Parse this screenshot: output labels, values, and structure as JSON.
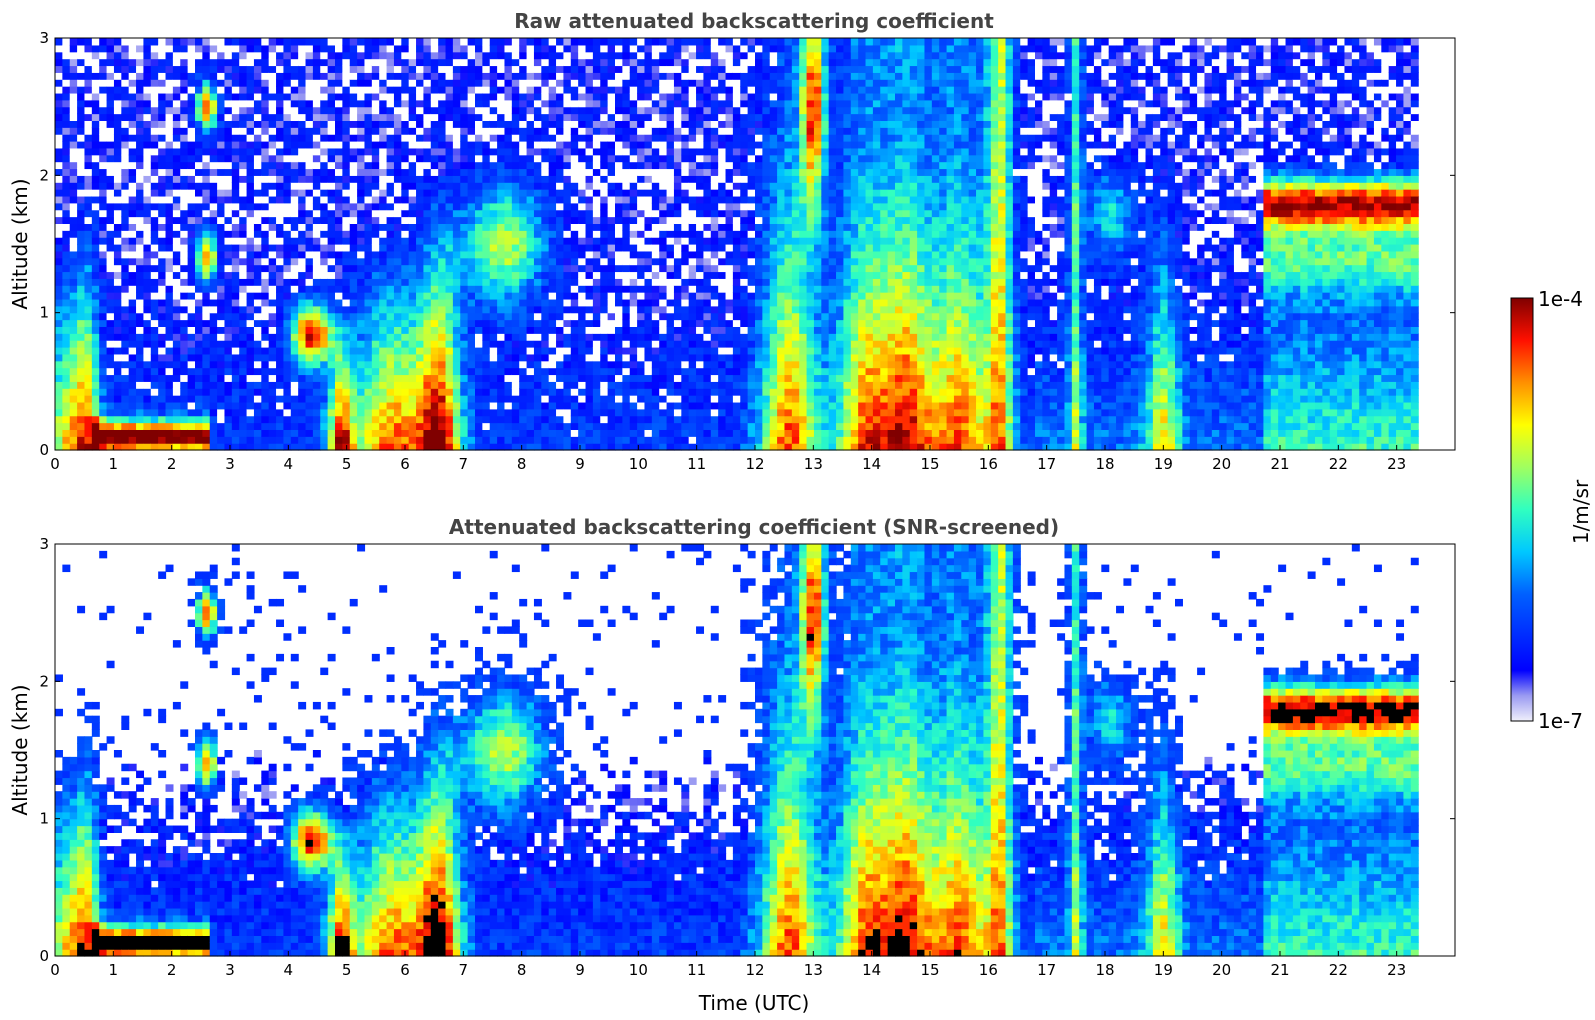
{
  "chart_data": [
    {
      "type": "heatmap",
      "title": "Raw attenuated backscattering coefficient",
      "xlabel": "",
      "ylabel": "Altitude (km)",
      "xlim": [
        0,
        24
      ],
      "ylim": [
        0,
        3
      ],
      "x_ticks": [
        "0",
        "1",
        "2",
        "3",
        "4",
        "5",
        "6",
        "7",
        "8",
        "9",
        "10",
        "11",
        "12",
        "13",
        "14",
        "15",
        "16",
        "17",
        "18",
        "19",
        "20",
        "21",
        "22",
        "23"
      ],
      "y_ticks": [
        "0",
        "1",
        "2",
        "3"
      ],
      "data_end_time": 23.4,
      "features": [
        {
          "kind": "plume",
          "t_start": 12.3,
          "t_end": 13.2,
          "alt_top": 3.0,
          "intensity": "high"
        },
        {
          "kind": "plume",
          "t_start": 13.5,
          "t_end": 14.3,
          "alt_top": 3.0,
          "intensity": "high"
        },
        {
          "kind": "plume",
          "t_start": 14.7,
          "t_end": 16.4,
          "alt_top": 3.0,
          "intensity": "high"
        },
        {
          "kind": "layer",
          "t_start": 20.8,
          "t_end": 23.4,
          "alt": 1.8,
          "intensity": "high"
        },
        {
          "kind": "surface_layer",
          "t_start": 0.6,
          "t_end": 2.6,
          "alt": 0.1,
          "intensity": "high"
        }
      ]
    },
    {
      "type": "heatmap",
      "title": "Attenuated backscattering coefficient (SNR-screened)",
      "xlabel": "Time (UTC)",
      "ylabel": "Altitude (km)",
      "xlim": [
        0,
        24
      ],
      "ylim": [
        0,
        3
      ],
      "x_ticks": [
        "0",
        "1",
        "2",
        "3",
        "4",
        "5",
        "6",
        "7",
        "8",
        "9",
        "10",
        "11",
        "12",
        "13",
        "14",
        "15",
        "16",
        "17",
        "18",
        "19",
        "20",
        "21",
        "22",
        "23"
      ],
      "y_ticks": [
        "0",
        "1",
        "2",
        "3"
      ],
      "data_end_time": 23.4,
      "screened": true
    }
  ],
  "colorbar": {
    "label": "1/m/sr",
    "max_label": "1e-4",
    "min_label": "1e-7",
    "colormap": "jet",
    "colors": [
      "#e8e8f8",
      "#0000ff",
      "#00ffff",
      "#ffff00",
      "#ff0000",
      "#800000"
    ]
  }
}
